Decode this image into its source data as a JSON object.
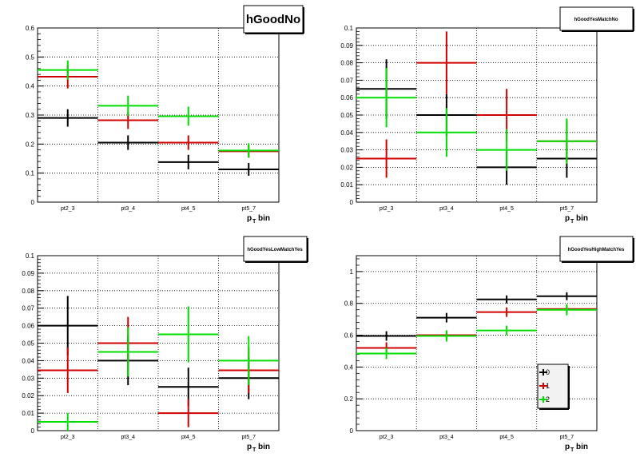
{
  "chart_data": [
    {
      "type": "errorbar-histogram",
      "title": "hGoodNo",
      "xlabel": "p",
      "xlabel_sub": "T",
      "xlabel_suffix": "bin",
      "categories": [
        "pt2_3",
        "pt3_4",
        "pt4_5",
        "pt5_7"
      ],
      "ylim": [
        0,
        0.6
      ],
      "yticks": [
        0,
        0.1,
        0.2,
        0.3,
        0.4,
        0.5,
        0.6
      ],
      "grid": true,
      "series": [
        {
          "color": "#000000",
          "values": [
            0.29,
            0.205,
            0.138,
            0.113
          ],
          "errors": [
            0.03,
            0.025,
            0.025,
            0.022
          ]
        },
        {
          "color": "#d00000",
          "values": [
            0.432,
            0.282,
            0.205,
            0.175
          ],
          "errors": [
            0.04,
            0.03,
            0.025,
            0.022
          ]
        },
        {
          "color": "#00dd00",
          "values": [
            0.455,
            0.332,
            0.296,
            0.178
          ],
          "errors": [
            0.033,
            0.035,
            0.033,
            0.025
          ]
        }
      ]
    },
    {
      "type": "errorbar-histogram",
      "title": "hGoodYesMatchNo",
      "xlabel": "p",
      "xlabel_sub": "T",
      "xlabel_suffix": "bin",
      "categories": [
        "pt2_3",
        "pt3_4",
        "pt4_5",
        "pt5_7"
      ],
      "ylim": [
        0,
        0.1
      ],
      "yticks": [
        0,
        0.01,
        0.02,
        0.03,
        0.04,
        0.05,
        0.06,
        0.07,
        0.08,
        0.09,
        0.1
      ],
      "grid": true,
      "series": [
        {
          "color": "#000000",
          "values": [
            0.065,
            0.05,
            0.02,
            0.025
          ],
          "errors": [
            0.017,
            0.012,
            0.01,
            0.011
          ]
        },
        {
          "color": "#d00000",
          "values": [
            0.025,
            0.08,
            0.05,
            0.035
          ],
          "errors": [
            0.011,
            0.018,
            0.015,
            0.012
          ]
        },
        {
          "color": "#00dd00",
          "values": [
            0.06,
            0.04,
            0.03,
            0.035
          ],
          "errors": [
            0.017,
            0.014,
            0.012,
            0.013
          ]
        }
      ]
    },
    {
      "type": "errorbar-histogram",
      "title": "hGoodYesLowMatchYes",
      "xlabel": "p",
      "xlabel_sub": "T",
      "xlabel_suffix": "bin",
      "categories": [
        "pt2_3",
        "pt3_4",
        "pt4_5",
        "pt5_7"
      ],
      "ylim": [
        0,
        0.1
      ],
      "yticks": [
        0,
        0.01,
        0.02,
        0.03,
        0.04,
        0.05,
        0.06,
        0.07,
        0.08,
        0.09,
        0.1
      ],
      "grid": true,
      "series": [
        {
          "color": "#000000",
          "values": [
            0.06,
            0.04,
            0.025,
            0.03
          ],
          "errors": [
            0.017,
            0.014,
            0.011,
            0.012
          ]
        },
        {
          "color": "#d00000",
          "values": [
            0.0345,
            0.05,
            0.01,
            0.0345
          ],
          "errors": [
            0.013,
            0.015,
            0.008,
            0.013
          ]
        },
        {
          "color": "#00dd00",
          "values": [
            0.005,
            0.045,
            0.055,
            0.04
          ],
          "errors": [
            0.005,
            0.014,
            0.016,
            0.014
          ]
        }
      ]
    },
    {
      "type": "errorbar-histogram",
      "title": "hGoodYesHighMatchYes",
      "xlabel": "p",
      "xlabel_sub": "T",
      "xlabel_suffix": "bin",
      "categories": [
        "pt2_3",
        "pt3_4",
        "pt4_5",
        "pt5_7"
      ],
      "ylim": [
        0,
        1.1
      ],
      "yticks": [
        0,
        0.2,
        0.4,
        0.6,
        0.8,
        1
      ],
      "grid": true,
      "legend": {
        "placement": "bottom-right",
        "entries": [
          "0",
          "1",
          "2"
        ]
      },
      "series": [
        {
          "name": "0",
          "color": "#000000",
          "values": [
            0.595,
            0.71,
            0.825,
            0.845
          ],
          "errors": [
            0.03,
            0.03,
            0.025,
            0.025
          ]
        },
        {
          "name": "1",
          "color": "#d00000",
          "values": [
            0.52,
            0.6,
            0.745,
            0.765
          ],
          "errors": [
            0.035,
            0.03,
            0.03,
            0.025
          ]
        },
        {
          "name": "2",
          "color": "#00dd00",
          "values": [
            0.485,
            0.595,
            0.63,
            0.76
          ],
          "errors": [
            0.035,
            0.035,
            0.03,
            0.035
          ]
        }
      ]
    }
  ]
}
